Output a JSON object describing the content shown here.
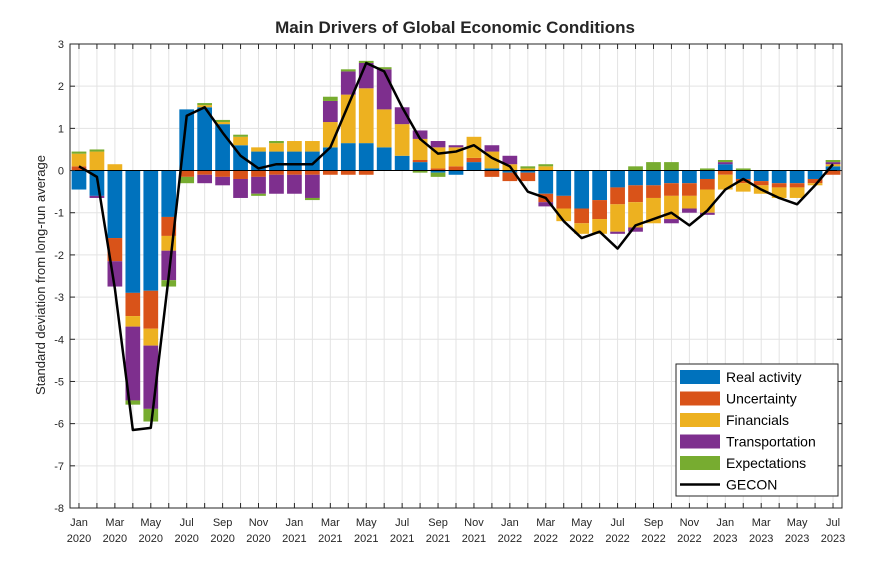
{
  "chart_data": {
    "type": "bar",
    "stacked": true,
    "title": "Main Drivers of Global Economic Conditions",
    "ylabel": "Standard deviation from long-run average",
    "ylim": [
      -8,
      3
    ],
    "yticks": [
      "3",
      "2",
      "1",
      "0",
      "-1",
      "-2",
      "-3",
      "-4",
      "-5",
      "-6",
      "-7",
      "-8"
    ],
    "grid": true,
    "legend_position": "bottom-right",
    "xtick_labels": [
      [
        "Jan",
        "2020"
      ],
      [
        "Mar",
        "2020"
      ],
      [
        "May",
        "2020"
      ],
      [
        "Jul",
        "2020"
      ],
      [
        "Sep",
        "2020"
      ],
      [
        "Nov",
        "2020"
      ],
      [
        "Jan",
        "2021"
      ],
      [
        "Mar",
        "2021"
      ],
      [
        "May",
        "2021"
      ],
      [
        "Jul",
        "2021"
      ],
      [
        "Sep",
        "2021"
      ],
      [
        "Nov",
        "2021"
      ],
      [
        "Jan",
        "2022"
      ],
      [
        "Mar",
        "2022"
      ],
      [
        "May",
        "2022"
      ],
      [
        "Jul",
        "2022"
      ],
      [
        "Sep",
        "2022"
      ],
      [
        "Nov",
        "2022"
      ],
      [
        "Jan",
        "2023"
      ],
      [
        "Mar",
        "2023"
      ],
      [
        "May",
        "2023"
      ],
      [
        "Jul",
        "2023"
      ]
    ],
    "categories": [
      "Jan 2020",
      "Feb 2020",
      "Mar 2020",
      "Apr 2020",
      "May 2020",
      "Jun 2020",
      "Jul 2020",
      "Aug 2020",
      "Sep 2020",
      "Oct 2020",
      "Nov 2020",
      "Dec 2020",
      "Jan 2021",
      "Feb 2021",
      "Mar 2021",
      "Apr 2021",
      "May 2021",
      "Jun 2021",
      "Jul 2021",
      "Aug 2021",
      "Sep 2021",
      "Oct 2021",
      "Nov 2021",
      "Dec 2021",
      "Jan 2022",
      "Feb 2022",
      "Mar 2022",
      "Apr 2022",
      "May 2022",
      "Jun 2022",
      "Jul 2022",
      "Aug 2022",
      "Sep 2022",
      "Oct 2022",
      "Nov 2022",
      "Dec 2022",
      "Jan 2023",
      "Feb 2023",
      "Mar 2023",
      "Apr 2023",
      "May 2023",
      "Jun 2023",
      "Jul 2023"
    ],
    "series": [
      {
        "name": "Real activity",
        "color": "#0072BD",
        "values": [
          -0.45,
          -0.6,
          -1.6,
          -2.9,
          -2.85,
          -1.1,
          1.45,
          1.5,
          1.1,
          0.6,
          0.45,
          0.45,
          0.45,
          0.45,
          0.55,
          0.65,
          0.65,
          0.55,
          0.35,
          0.2,
          -0.05,
          -0.1,
          0.2,
          0.05,
          -0.05,
          -0.05,
          -0.55,
          -0.6,
          -0.9,
          -0.7,
          -0.4,
          -0.35,
          -0.35,
          -0.3,
          -0.3,
          -0.2,
          0.15,
          -0.2,
          -0.25,
          -0.3,
          -0.3,
          -0.2,
          0.1
        ]
      },
      {
        "name": "Uncertainty",
        "color": "#D95319",
        "values": [
          0.1,
          0.0,
          -0.55,
          -0.55,
          -0.9,
          -0.45,
          -0.15,
          -0.1,
          -0.15,
          -0.2,
          -0.15,
          -0.1,
          -0.1,
          -0.1,
          -0.1,
          -0.1,
          -0.1,
          0.0,
          0.0,
          0.05,
          0.05,
          0.1,
          0.1,
          -0.15,
          -0.2,
          -0.2,
          -0.2,
          -0.3,
          -0.35,
          -0.45,
          -0.4,
          -0.4,
          -0.3,
          -0.3,
          -0.3,
          -0.25,
          -0.1,
          -0.1,
          -0.1,
          -0.1,
          -0.1,
          -0.1,
          -0.1
        ]
      },
      {
        "name": "Financials",
        "color": "#EDB120",
        "values": [
          0.3,
          0.45,
          0.15,
          -0.25,
          -0.4,
          -0.35,
          0.0,
          0.05,
          0.05,
          0.2,
          0.1,
          0.2,
          0.25,
          0.25,
          0.6,
          1.15,
          1.3,
          0.9,
          0.75,
          0.5,
          0.5,
          0.45,
          0.5,
          0.4,
          0.15,
          0.05,
          0.1,
          -0.3,
          -0.25,
          -0.35,
          -0.65,
          -0.6,
          -0.6,
          -0.55,
          -0.3,
          -0.55,
          -0.35,
          -0.2,
          -0.2,
          -0.25,
          -0.25,
          -0.05,
          0.05
        ]
      },
      {
        "name": "Transportation",
        "color": "#7E2F8E",
        "values": [
          0.0,
          -0.05,
          -0.6,
          -1.75,
          -1.5,
          -0.7,
          0.0,
          -0.2,
          -0.2,
          -0.45,
          -0.4,
          -0.45,
          -0.45,
          -0.55,
          0.5,
          0.55,
          0.6,
          0.95,
          0.4,
          0.2,
          0.15,
          0.05,
          0.0,
          0.15,
          0.2,
          0.0,
          -0.1,
          0.0,
          0.0,
          0.0,
          -0.05,
          -0.1,
          0.0,
          -0.1,
          -0.1,
          -0.05,
          0.05,
          0.0,
          0.0,
          0.0,
          0.0,
          0.0,
          0.05
        ]
      },
      {
        "name": "Expectations",
        "color": "#77AC30",
        "values": [
          0.05,
          0.05,
          0.0,
          -0.1,
          -0.3,
          -0.15,
          -0.15,
          0.05,
          0.05,
          0.05,
          -0.05,
          0.05,
          0.0,
          -0.05,
          0.1,
          0.05,
          0.05,
          0.05,
          0.0,
          -0.05,
          -0.1,
          0.0,
          0.0,
          0.0,
          0.0,
          0.05,
          0.05,
          0.0,
          0.0,
          0.0,
          0.0,
          0.1,
          0.2,
          0.2,
          0.0,
          0.05,
          0.05,
          0.05,
          0.0,
          0.0,
          0.0,
          0.0,
          0.05
        ]
      }
    ],
    "line": {
      "name": "GECON",
      "color": "#000000",
      "values": [
        0.1,
        -0.15,
        -2.8,
        -6.15,
        -6.1,
        -2.5,
        1.3,
        1.5,
        0.9,
        0.35,
        0.05,
        0.15,
        0.15,
        0.15,
        0.55,
        1.55,
        2.55,
        2.35,
        1.5,
        0.75,
        0.4,
        0.45,
        0.6,
        0.3,
        0.1,
        -0.5,
        -0.65,
        -1.2,
        -1.6,
        -1.45,
        -1.85,
        -1.3,
        -1.15,
        -1.0,
        -1.3,
        -0.95,
        -0.45,
        -0.2,
        -0.45,
        -0.65,
        -0.8,
        -0.35,
        0.15
      ]
    }
  }
}
